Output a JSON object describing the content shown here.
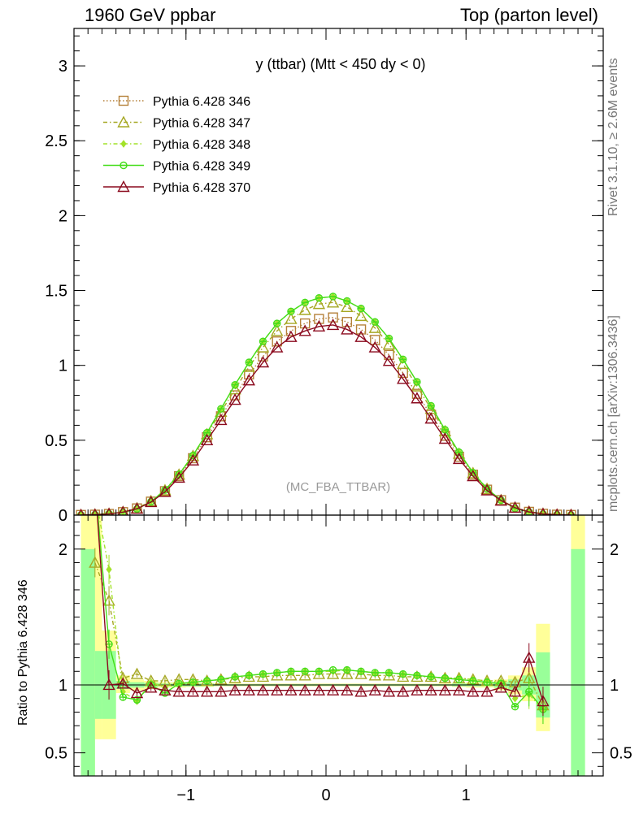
{
  "header": {
    "left": "1960 GeV ppbar",
    "right": "Top (parton level)"
  },
  "side": {
    "rivet": "Rivet 3.1.10, ≥ 2.6M events",
    "mcplots": "mcplots.cern.ch [arXiv:1306.3436]"
  },
  "chart_data": [
    {
      "type": "line",
      "title": "y (ttbar) (Mtt < 450 dy < 0)",
      "watermark": "(MC_FBA_TTBAR)",
      "ylim": [
        0,
        3.25
      ],
      "xlim": [
        -1.8,
        1.98
      ],
      "yticks": [
        "0",
        "0.5",
        "1",
        "1.5",
        "2",
        "2.5",
        "3"
      ],
      "x": [
        -1.75,
        -1.65,
        -1.55,
        -1.45,
        -1.35,
        -1.25,
        -1.15,
        -1.05,
        -0.95,
        -0.85,
        -0.75,
        -0.65,
        -0.55,
        -0.45,
        -0.35,
        -0.25,
        -0.15,
        -0.05,
        0.05,
        0.15,
        0.25,
        0.35,
        0.45,
        0.55,
        0.65,
        0.75,
        0.85,
        0.95,
        1.05,
        1.15,
        1.25,
        1.35,
        1.45,
        1.55,
        1.65,
        1.75
      ],
      "series": [
        {
          "name": "Pythia 6.428 346",
          "color": "#b5813a",
          "marker": "square",
          "line": "dotted",
          "values": [
            0.001,
            0.003,
            0.008,
            0.02,
            0.045,
            0.09,
            0.16,
            0.26,
            0.38,
            0.52,
            0.66,
            0.8,
            0.94,
            1.06,
            1.16,
            1.23,
            1.28,
            1.31,
            1.32,
            1.29,
            1.24,
            1.17,
            1.07,
            0.95,
            0.81,
            0.67,
            0.53,
            0.39,
            0.27,
            0.17,
            0.1,
            0.05,
            0.022,
            0.009,
            0.003,
            0.001
          ]
        },
        {
          "name": "Pythia 6.428 347",
          "color": "#a6a824",
          "marker": "triangle",
          "line": "dashdot",
          "values": [
            0.001,
            0.004,
            0.009,
            0.021,
            0.046,
            0.093,
            0.166,
            0.27,
            0.395,
            0.54,
            0.69,
            0.84,
            0.99,
            1.12,
            1.23,
            1.31,
            1.37,
            1.41,
            1.42,
            1.39,
            1.33,
            1.25,
            1.14,
            1.01,
            0.86,
            0.71,
            0.56,
            0.41,
            0.28,
            0.175,
            0.1,
            0.05,
            0.023,
            0.009,
            0.003,
            0.001
          ]
        },
        {
          "name": "Pythia 6.428 348",
          "color": "#a3e22a",
          "marker": "diamond",
          "line": "dashdot",
          "values": [
            0.001,
            0.005,
            0.012,
            0.019,
            0.04,
            0.092,
            0.168,
            0.275,
            0.4,
            0.55,
            0.71,
            0.87,
            1.02,
            1.16,
            1.28,
            1.36,
            1.42,
            1.45,
            1.46,
            1.43,
            1.38,
            1.29,
            1.18,
            1.04,
            0.89,
            0.73,
            0.57,
            0.42,
            0.285,
            0.178,
            0.1,
            0.046,
            0.021,
            0.008,
            0.003,
            0.001
          ]
        },
        {
          "name": "Pythia 6.428 349",
          "color": "#44dd1a",
          "marker": "circle",
          "line": "solid",
          "values": [
            0.001,
            0.004,
            0.01,
            0.018,
            0.041,
            0.09,
            0.167,
            0.272,
            0.398,
            0.55,
            0.71,
            0.87,
            1.02,
            1.16,
            1.28,
            1.36,
            1.42,
            1.45,
            1.46,
            1.43,
            1.38,
            1.29,
            1.18,
            1.04,
            0.89,
            0.73,
            0.57,
            0.42,
            0.283,
            0.176,
            0.1,
            0.045,
            0.021,
            0.008,
            0.003,
            0.001
          ]
        },
        {
          "name": "Pythia 6.428 370",
          "color": "#8b0a1e",
          "marker": "triangle",
          "line": "solid",
          "values": [
            0.001,
            0.003,
            0.008,
            0.02,
            0.043,
            0.087,
            0.155,
            0.25,
            0.365,
            0.5,
            0.635,
            0.77,
            0.9,
            1.02,
            1.12,
            1.19,
            1.23,
            1.26,
            1.27,
            1.24,
            1.19,
            1.12,
            1.03,
            0.91,
            0.78,
            0.645,
            0.51,
            0.375,
            0.26,
            0.165,
            0.097,
            0.05,
            0.021,
            0.008,
            0.003,
            0.001
          ]
        }
      ]
    },
    {
      "type": "line",
      "ylabel": "Ratio to Pythia 6.428 346",
      "ylim": [
        0.33,
        2.25
      ],
      "xlim": [
        -1.8,
        1.98
      ],
      "yticks": [
        "0.5",
        "1",
        "2"
      ],
      "xticks": [
        "−1",
        "0",
        "1"
      ],
      "x": [
        -1.65,
        -1.55,
        -1.45,
        -1.35,
        -1.25,
        -1.15,
        -1.05,
        -0.95,
        -0.85,
        -0.75,
        -0.65,
        -0.55,
        -0.45,
        -0.35,
        -0.25,
        -0.15,
        -0.05,
        0.05,
        0.15,
        0.25,
        0.35,
        0.45,
        0.55,
        0.65,
        0.75,
        0.85,
        0.95,
        1.05,
        1.15,
        1.25,
        1.35,
        1.45,
        1.55
      ],
      "bands": {
        "yellow": {
          "color": "#ffff99",
          "lo": [
            0.6,
            0.6,
            0.94,
            0.96,
            0.97,
            0.98,
            0.98,
            0.985,
            0.985,
            0.99,
            0.99,
            0.99,
            0.99,
            0.99,
            0.99,
            0.99,
            0.99,
            0.99,
            0.99,
            0.99,
            0.99,
            0.99,
            0.99,
            0.99,
            0.99,
            0.99,
            0.985,
            0.98,
            0.98,
            0.96,
            0.93,
            0.88,
            0.66
          ],
          "hi": [
            2.4,
            1.4,
            1.07,
            1.04,
            1.03,
            1.02,
            1.02,
            1.015,
            1.015,
            1.01,
            1.01,
            1.01,
            1.01,
            1.01,
            1.01,
            1.01,
            1.01,
            1.01,
            1.01,
            1.01,
            1.01,
            1.01,
            1.01,
            1.01,
            1.01,
            1.01,
            1.015,
            1.02,
            1.02,
            1.04,
            1.07,
            1.13,
            1.45
          ]
        },
        "green": {
          "color": "#99ff99",
          "lo": [
            0.75,
            0.75,
            0.97,
            0.98,
            0.985,
            0.99,
            0.99,
            0.99,
            0.99,
            0.995,
            0.995,
            0.995,
            0.995,
            0.995,
            0.995,
            0.995,
            0.995,
            0.995,
            0.995,
            0.995,
            0.995,
            0.995,
            0.995,
            0.995,
            0.995,
            0.995,
            0.99,
            0.99,
            0.99,
            0.98,
            0.96,
            0.93,
            0.76
          ],
          "hi": [
            1.25,
            1.25,
            1.03,
            1.02,
            1.015,
            1.01,
            1.01,
            1.01,
            1.01,
            1.005,
            1.005,
            1.005,
            1.005,
            1.005,
            1.005,
            1.005,
            1.005,
            1.005,
            1.005,
            1.005,
            1.005,
            1.005,
            1.005,
            1.005,
            1.005,
            1.005,
            1.01,
            1.01,
            1.01,
            1.02,
            1.04,
            1.07,
            1.24
          ]
        },
        "edge": [
          {
            "x0": -1.75,
            "x1": -1.65,
            "yellow": [
              0.3,
              2.5
            ],
            "green": [
              0.3,
              2.0
            ]
          },
          {
            "x0": 1.75,
            "x1": 1.85,
            "yellow": [
              0.3,
              2.5
            ],
            "green": [
              0.3,
              2.0
            ]
          }
        ]
      },
      "series": [
        {
          "name": "Pythia 6.428 347",
          "color": "#a6a824",
          "marker": "triangle",
          "line": "dashdot",
          "values": [
            1.9,
            1.62,
            1.05,
            1.08,
            1.03,
            1.03,
            1.04,
            1.04,
            1.03,
            1.04,
            1.05,
            1.06,
            1.06,
            1.07,
            1.07,
            1.07,
            1.08,
            1.08,
            1.08,
            1.08,
            1.07,
            1.07,
            1.06,
            1.06,
            1.06,
            1.05,
            1.05,
            1.04,
            1.03,
            1.03,
            1.02,
            1.05,
            0.85
          ]
        },
        {
          "name": "Pythia 6.428 348",
          "color": "#a3e22a",
          "marker": "diamond",
          "line": "dashdot",
          "values": [
            2.4,
            1.85,
            0.95,
            0.88,
            1.02,
            0.98,
            1.01,
            1.02,
            1.03,
            1.04,
            1.06,
            1.07,
            1.08,
            1.09,
            1.1,
            1.1,
            1.1,
            1.1,
            1.11,
            1.1,
            1.09,
            1.09,
            1.08,
            1.07,
            1.06,
            1.05,
            1.05,
            1.04,
            1.03,
            1.02,
            0.9,
            0.93,
            0.82
          ]
        },
        {
          "name": "Pythia 6.428 349",
          "color": "#44dd1a",
          "marker": "circle",
          "line": "solid",
          "values": [
            2.5,
            1.3,
            0.91,
            0.89,
            1.0,
            0.94,
            1.01,
            1.02,
            1.03,
            1.04,
            1.06,
            1.07,
            1.08,
            1.09,
            1.1,
            1.1,
            1.1,
            1.11,
            1.11,
            1.1,
            1.09,
            1.09,
            1.08,
            1.07,
            1.06,
            1.05,
            1.04,
            1.03,
            1.02,
            1.01,
            0.84,
            0.95,
            0.82
          ]
        },
        {
          "name": "Pythia 6.428 370",
          "color": "#8b0a1e",
          "marker": "triangle",
          "line": "solid",
          "values": [
            2.5,
            1.0,
            1.01,
            0.94,
            0.98,
            0.96,
            0.95,
            0.95,
            0.95,
            0.95,
            0.96,
            0.96,
            0.96,
            0.96,
            0.96,
            0.96,
            0.96,
            0.96,
            0.96,
            0.95,
            0.96,
            0.95,
            0.95,
            0.96,
            0.96,
            0.96,
            0.96,
            0.95,
            0.95,
            0.98,
            0.95,
            1.2,
            0.88
          ]
        }
      ]
    }
  ]
}
